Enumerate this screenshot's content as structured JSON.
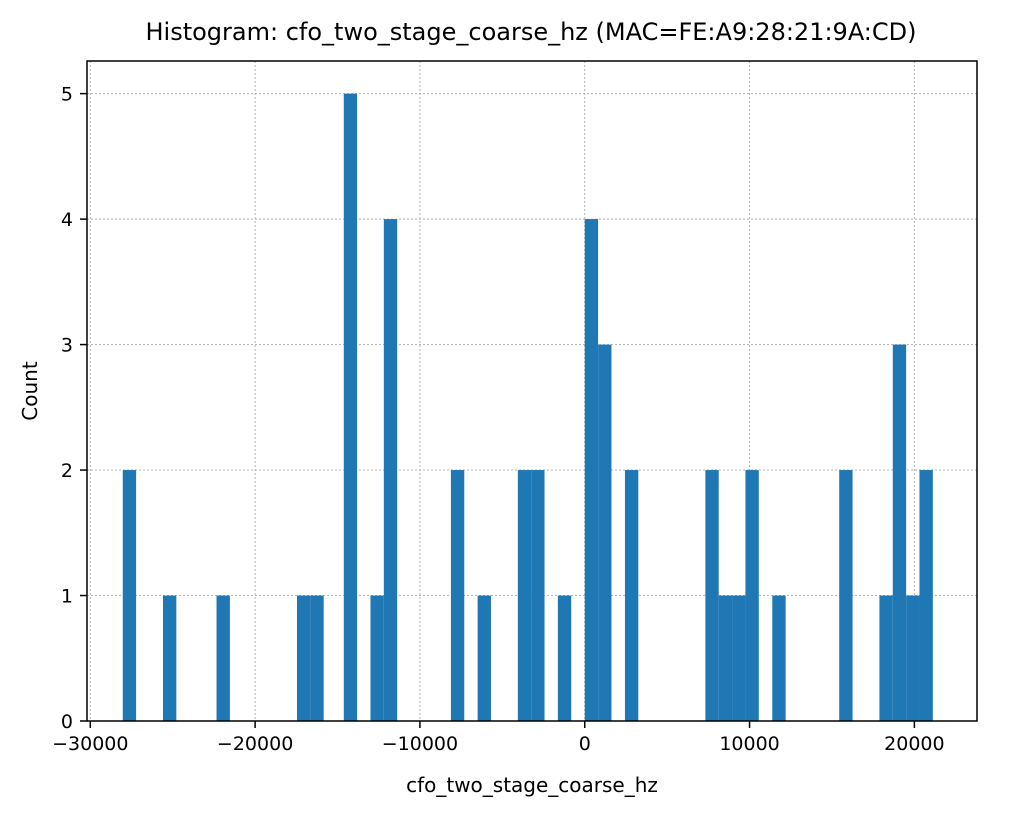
{
  "chart_data": {
    "type": "bar",
    "title": "Histogram: cfo_two_stage_coarse_hz (MAC=FE:A9:28:21:9A:CD)",
    "xlabel": "cfo_two_stage_coarse_hz",
    "ylabel": "Count",
    "xlim": [
      -30200,
      23800
    ],
    "ylim": [
      0,
      5.26
    ],
    "grid": true,
    "bin_width": 810,
    "x_ticks": [
      {
        "value": -30000,
        "label": "−30000"
      },
      {
        "value": -20000,
        "label": "−20000"
      },
      {
        "value": -10000,
        "label": "−10000"
      },
      {
        "value": 0,
        "label": "0"
      },
      {
        "value": 10000,
        "label": "10000"
      },
      {
        "value": 20000,
        "label": "20000"
      }
    ],
    "y_ticks": [
      {
        "value": 0,
        "label": "0"
      },
      {
        "value": 1,
        "label": "1"
      },
      {
        "value": 2,
        "label": "2"
      },
      {
        "value": 3,
        "label": "3"
      },
      {
        "value": 4,
        "label": "4"
      },
      {
        "value": 5,
        "label": "5"
      }
    ],
    "bins": [
      {
        "x": -28030,
        "count": 2
      },
      {
        "x": -25590,
        "count": 1
      },
      {
        "x": -22340,
        "count": 1
      },
      {
        "x": -17460,
        "count": 1
      },
      {
        "x": -16650,
        "count": 1
      },
      {
        "x": -14620,
        "count": 5
      },
      {
        "x": -13000,
        "count": 1
      },
      {
        "x": -12190,
        "count": 4
      },
      {
        "x": -8120,
        "count": 2
      },
      {
        "x": -6500,
        "count": 1
      },
      {
        "x": -4060,
        "count": 2
      },
      {
        "x": -3250,
        "count": 2
      },
      {
        "x": -1630,
        "count": 1
      },
      {
        "x": 0,
        "count": 4
      },
      {
        "x": 810,
        "count": 3
      },
      {
        "x": 2440,
        "count": 2
      },
      {
        "x": 7320,
        "count": 2
      },
      {
        "x": 8130,
        "count": 1
      },
      {
        "x": 8940,
        "count": 1
      },
      {
        "x": 9750,
        "count": 2
      },
      {
        "x": 11380,
        "count": 1
      },
      {
        "x": 15440,
        "count": 2
      },
      {
        "x": 17880,
        "count": 1
      },
      {
        "x": 18690,
        "count": 3
      },
      {
        "x": 19500,
        "count": 1
      },
      {
        "x": 20310,
        "count": 2
      }
    ],
    "color": "#1f77b4"
  }
}
